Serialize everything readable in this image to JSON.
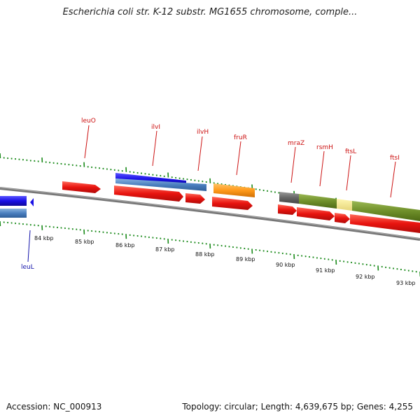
{
  "title": "Escherichia coli str. K-12 substr. MG1655 chromosome, comple...",
  "footer": {
    "accession": "Accession: NC_000913",
    "summary": "Topology: circular; Length: 4,639,675 bp; Genes: 4,255"
  },
  "axis": {
    "tick_labels": [
      "84 kbp",
      "85 kbp",
      "86 kbp",
      "87 kbp",
      "88 kbp",
      "89 kbp",
      "90 kbp",
      "91 kbp",
      "92 kbp",
      "93 kbp"
    ]
  },
  "colors": {
    "forward_gene": "#e8140f",
    "cds_blue": "#1a10e6",
    "cds_light_blue": "#4a7fbf",
    "orange": "#ff9a1a",
    "olive": "#6f8f2a",
    "dark_gray": "#666666",
    "pale_yellow": "#f0e68c",
    "tick_green": "#1a8a1a",
    "backbone": "#777777",
    "label_red": "#cc1111",
    "label_blue": "#1111aa"
  },
  "gene_labels": [
    {
      "name": "leuO",
      "color": "red"
    },
    {
      "name": "ilvI",
      "color": "red"
    },
    {
      "name": "ilvH",
      "color": "red"
    },
    {
      "name": "fruR",
      "color": "red"
    },
    {
      "name": "mraZ",
      "color": "red"
    },
    {
      "name": "rsmH",
      "color": "red"
    },
    {
      "name": "ftsL",
      "color": "red"
    },
    {
      "name": "ftsI",
      "color": "red"
    },
    {
      "name": "leuL",
      "color": "blue"
    }
  ]
}
